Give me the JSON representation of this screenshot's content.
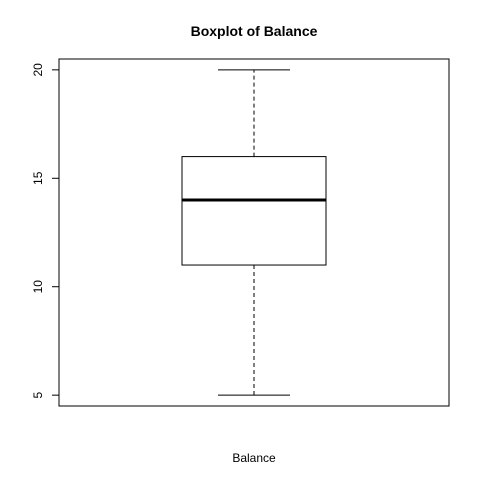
{
  "chart_data": {
    "type": "boxplot",
    "title": "Boxplot of Balance",
    "xlabel": "Balance",
    "ylabel": "",
    "ylim": [
      4.5,
      20.5
    ],
    "yticks": [
      5,
      10,
      15,
      20
    ],
    "ytick_labels": [
      "5",
      "10",
      "15",
      "20"
    ],
    "grid": false,
    "series": [
      {
        "min": 5,
        "q1": 11,
        "median": 14,
        "q3": 16,
        "max": 20
      }
    ]
  }
}
